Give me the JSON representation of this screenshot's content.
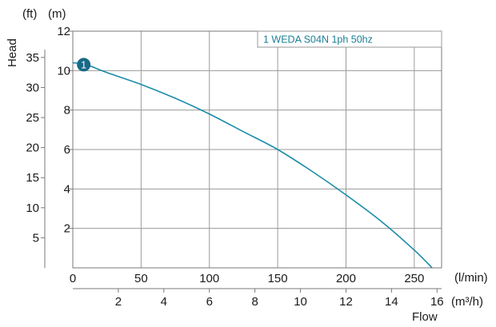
{
  "chart_data": {
    "type": "line",
    "xlabel": "Flow",
    "ylabel": "Head",
    "x_unit_primary": "(l/min)",
    "x_unit_secondary": "(m³/h)",
    "y_unit_primary": "(m)",
    "y_unit_secondary": "(ft)",
    "xlim": [
      0,
      270
    ],
    "ylim": [
      0,
      12
    ],
    "x_ticks_primary": [
      0,
      50,
      100,
      150,
      200,
      250
    ],
    "x_ticks_secondary": [
      2,
      4,
      6,
      8,
      10,
      12,
      14,
      16
    ],
    "y_ticks_primary": [
      2,
      4,
      6,
      8,
      10,
      12
    ],
    "y_ticks_secondary": [
      5,
      10,
      15,
      20,
      25,
      30,
      35
    ],
    "grid": true,
    "legend": {
      "label": "1 WEDA S04N 1ph 50hz",
      "position": "top-right"
    },
    "series": [
      {
        "name": "1 WEDA S04N 1ph 50hz",
        "marker_label": "1",
        "color": "#1a8ca8",
        "x": [
          0,
          10,
          25,
          50,
          75,
          100,
          125,
          150,
          175,
          200,
          225,
          250,
          263
        ],
        "y": [
          10.4,
          10.3,
          9.9,
          9.3,
          8.6,
          7.8,
          6.9,
          6.0,
          4.9,
          3.7,
          2.4,
          0.9,
          0.0
        ]
      }
    ],
    "marker_point": {
      "x": 8,
      "y": 10.3
    }
  }
}
